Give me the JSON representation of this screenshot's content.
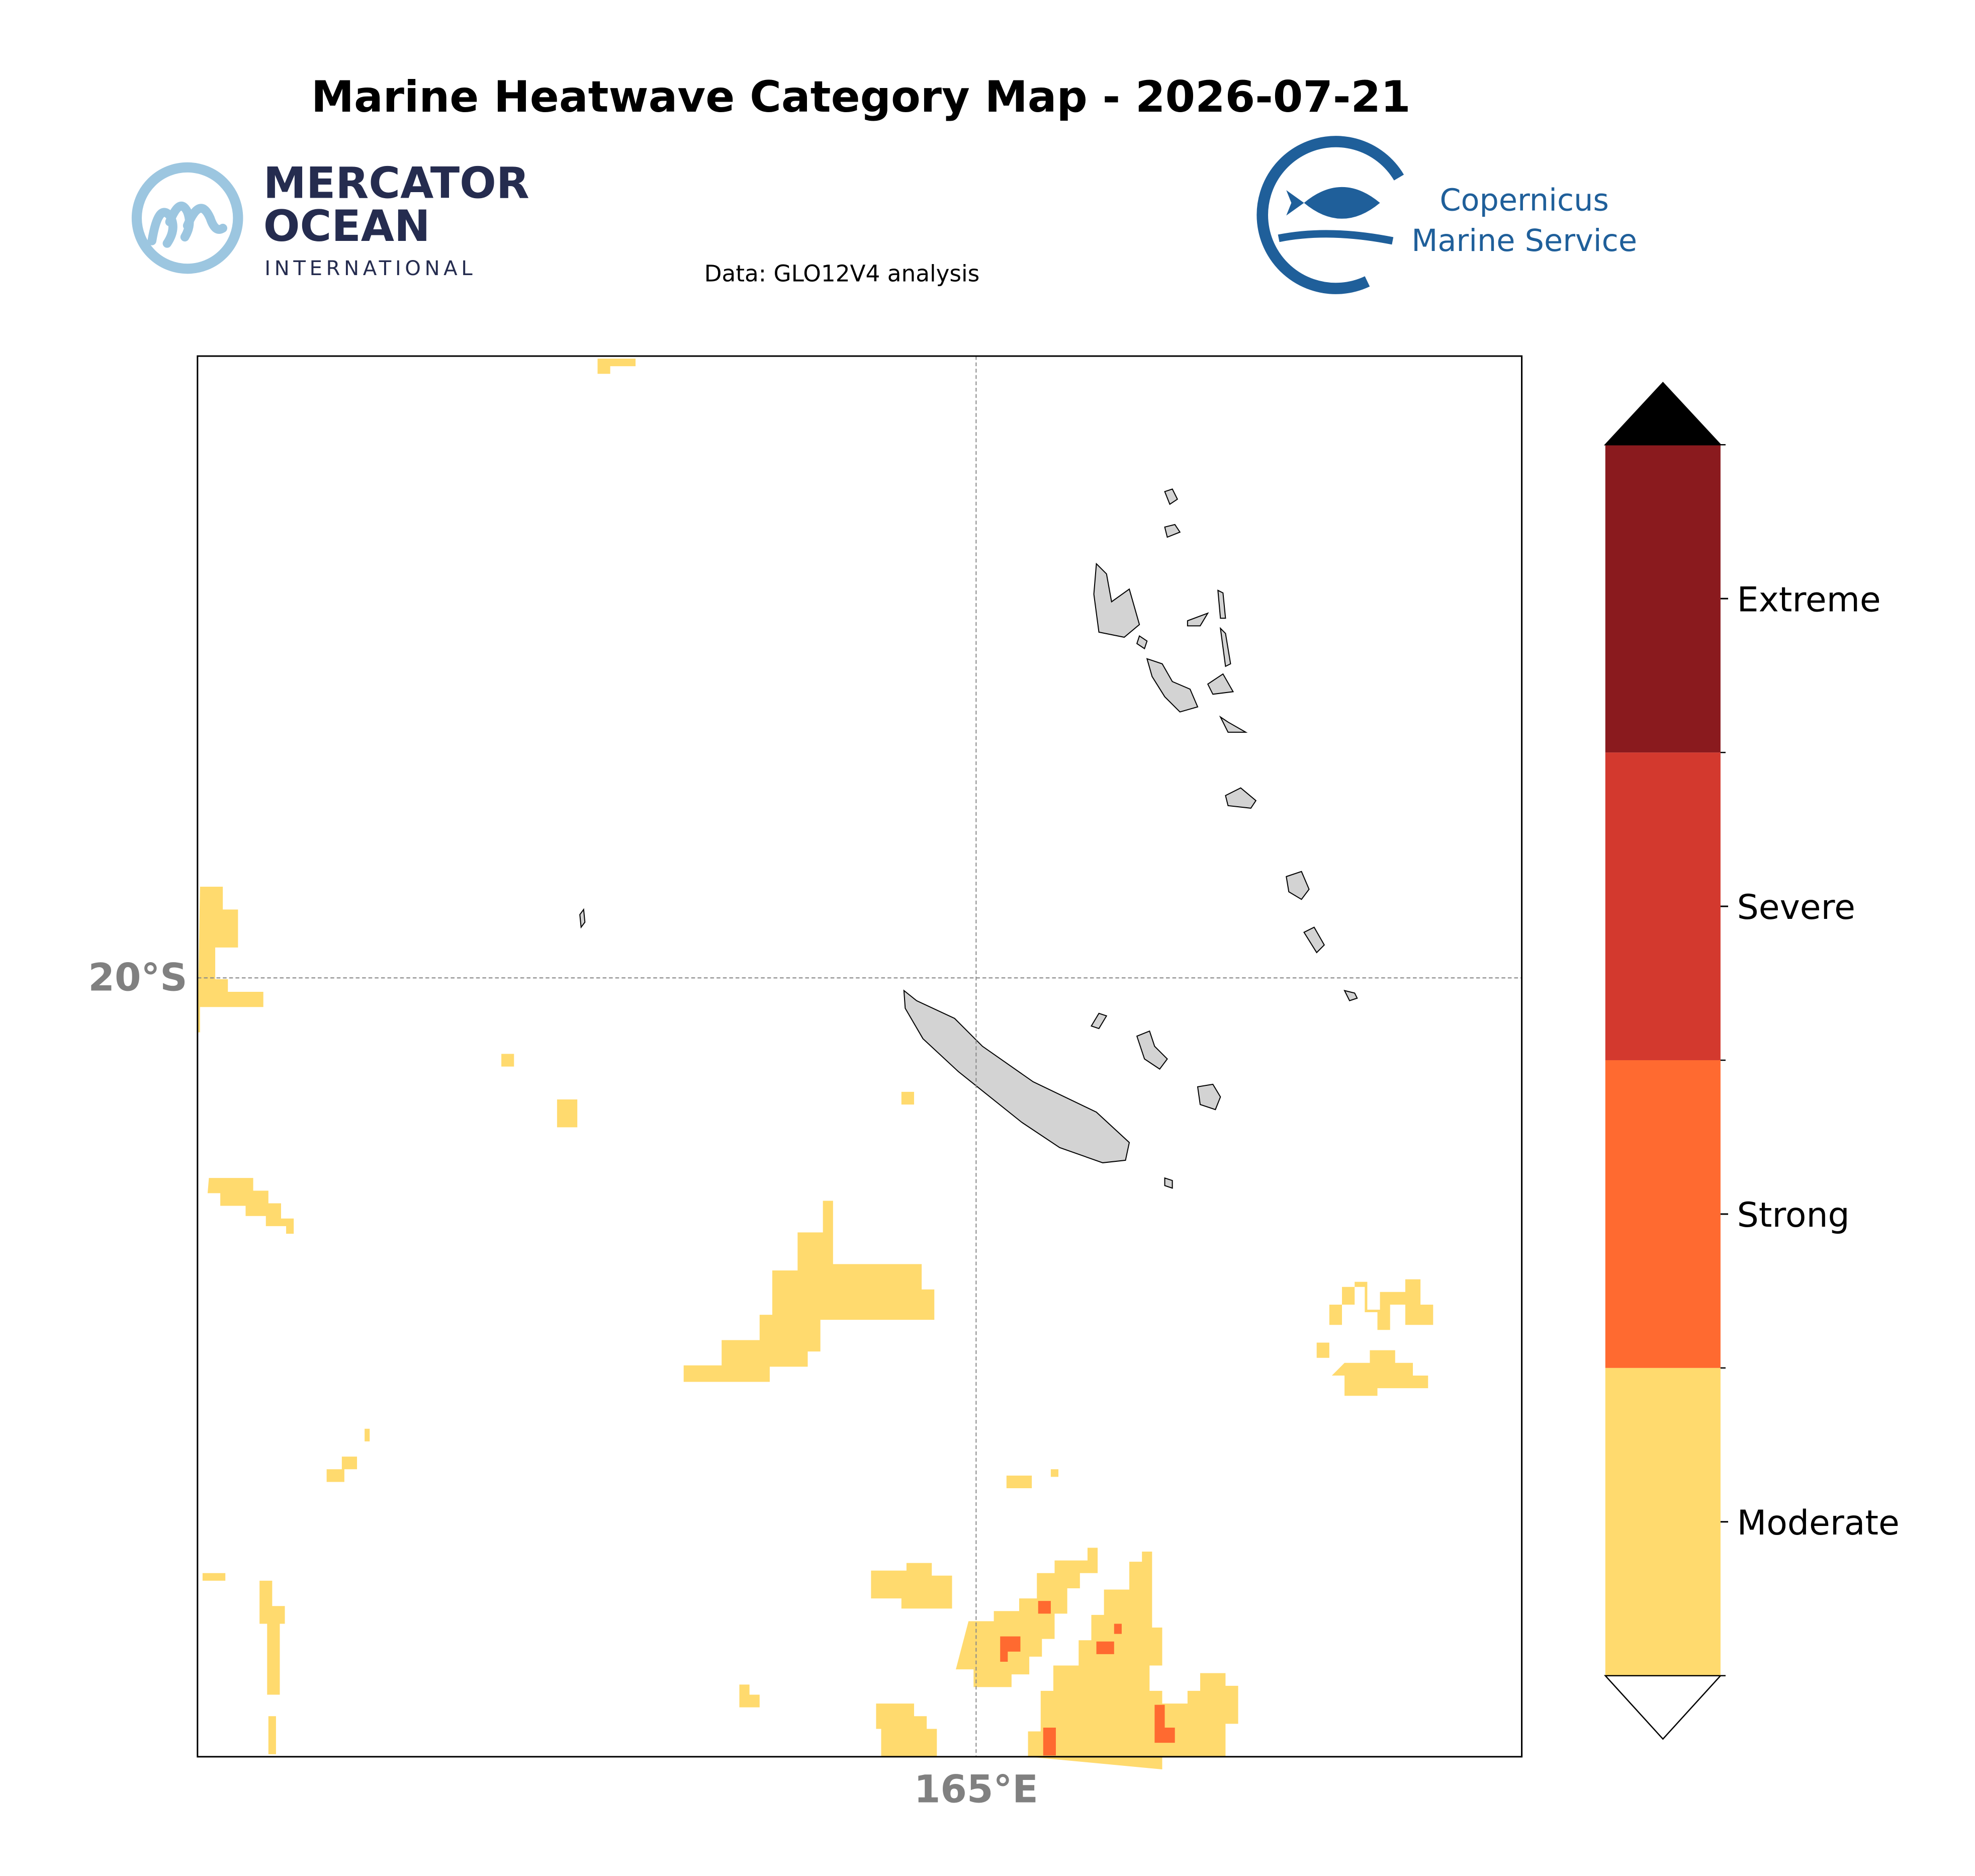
{
  "title": "Marine Heatwave Category Map - 2026-07-21",
  "subtitle": "Data: GLO12V4 analysis",
  "logos": {
    "mercator": [
      "MERCATOR",
      "OCEAN",
      "INTERNATIONAL"
    ],
    "copernicus": [
      "Copernicus",
      "Marine Service"
    ]
  },
  "map": {
    "lat_label": "20°S",
    "lon_label": "165°E"
  },
  "legend": {
    "categories": [
      {
        "label": "Moderate",
        "color": "#ffda6e"
      },
      {
        "label": "Strong",
        "color": "#ff6a30"
      },
      {
        "label": "Severe",
        "color": "#d3392e"
      },
      {
        "label": "Extreme",
        "color": "#8a1a1e"
      }
    ],
    "under_color": "#ffffff",
    "over_color": "#000000"
  }
}
